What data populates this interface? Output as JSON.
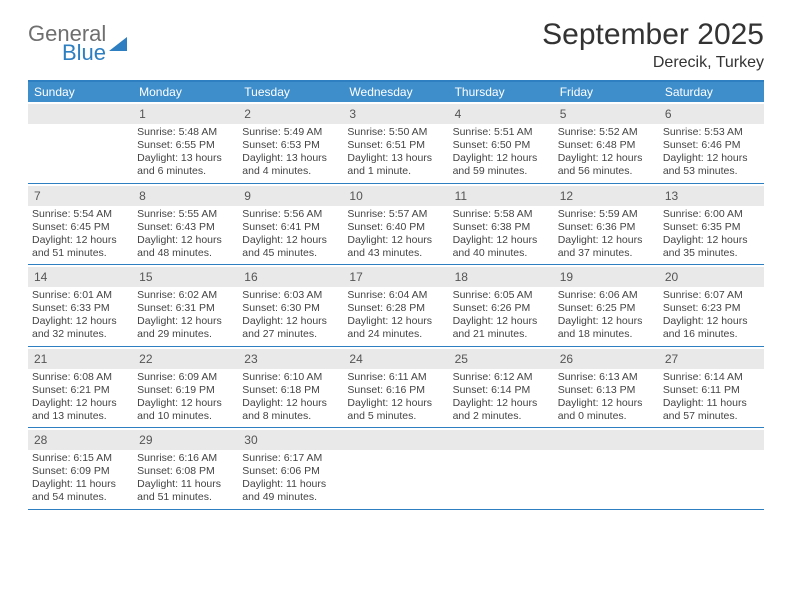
{
  "logo": {
    "line1": "General",
    "line2": "Blue"
  },
  "title": "September 2025",
  "subtitle": "Derecik, Turkey",
  "colors": {
    "header_bar": "#3e8ecc",
    "border": "#2d7fc1",
    "dayband": "#e9e9e9",
    "text": "#333333",
    "bg": "#ffffff"
  },
  "dow": [
    "Sunday",
    "Monday",
    "Tuesday",
    "Wednesday",
    "Thursday",
    "Friday",
    "Saturday"
  ],
  "weeks": [
    [
      {
        "blank": true
      },
      {
        "n": "1",
        "sunrise": "Sunrise: 5:48 AM",
        "sunset": "Sunset: 6:55 PM",
        "d1": "Daylight: 13 hours",
        "d2": "and 6 minutes."
      },
      {
        "n": "2",
        "sunrise": "Sunrise: 5:49 AM",
        "sunset": "Sunset: 6:53 PM",
        "d1": "Daylight: 13 hours",
        "d2": "and 4 minutes."
      },
      {
        "n": "3",
        "sunrise": "Sunrise: 5:50 AM",
        "sunset": "Sunset: 6:51 PM",
        "d1": "Daylight: 13 hours",
        "d2": "and 1 minute."
      },
      {
        "n": "4",
        "sunrise": "Sunrise: 5:51 AM",
        "sunset": "Sunset: 6:50 PM",
        "d1": "Daylight: 12 hours",
        "d2": "and 59 minutes."
      },
      {
        "n": "5",
        "sunrise": "Sunrise: 5:52 AM",
        "sunset": "Sunset: 6:48 PM",
        "d1": "Daylight: 12 hours",
        "d2": "and 56 minutes."
      },
      {
        "n": "6",
        "sunrise": "Sunrise: 5:53 AM",
        "sunset": "Sunset: 6:46 PM",
        "d1": "Daylight: 12 hours",
        "d2": "and 53 minutes."
      }
    ],
    [
      {
        "n": "7",
        "sunrise": "Sunrise: 5:54 AM",
        "sunset": "Sunset: 6:45 PM",
        "d1": "Daylight: 12 hours",
        "d2": "and 51 minutes."
      },
      {
        "n": "8",
        "sunrise": "Sunrise: 5:55 AM",
        "sunset": "Sunset: 6:43 PM",
        "d1": "Daylight: 12 hours",
        "d2": "and 48 minutes."
      },
      {
        "n": "9",
        "sunrise": "Sunrise: 5:56 AM",
        "sunset": "Sunset: 6:41 PM",
        "d1": "Daylight: 12 hours",
        "d2": "and 45 minutes."
      },
      {
        "n": "10",
        "sunrise": "Sunrise: 5:57 AM",
        "sunset": "Sunset: 6:40 PM",
        "d1": "Daylight: 12 hours",
        "d2": "and 43 minutes."
      },
      {
        "n": "11",
        "sunrise": "Sunrise: 5:58 AM",
        "sunset": "Sunset: 6:38 PM",
        "d1": "Daylight: 12 hours",
        "d2": "and 40 minutes."
      },
      {
        "n": "12",
        "sunrise": "Sunrise: 5:59 AM",
        "sunset": "Sunset: 6:36 PM",
        "d1": "Daylight: 12 hours",
        "d2": "and 37 minutes."
      },
      {
        "n": "13",
        "sunrise": "Sunrise: 6:00 AM",
        "sunset": "Sunset: 6:35 PM",
        "d1": "Daylight: 12 hours",
        "d2": "and 35 minutes."
      }
    ],
    [
      {
        "n": "14",
        "sunrise": "Sunrise: 6:01 AM",
        "sunset": "Sunset: 6:33 PM",
        "d1": "Daylight: 12 hours",
        "d2": "and 32 minutes."
      },
      {
        "n": "15",
        "sunrise": "Sunrise: 6:02 AM",
        "sunset": "Sunset: 6:31 PM",
        "d1": "Daylight: 12 hours",
        "d2": "and 29 minutes."
      },
      {
        "n": "16",
        "sunrise": "Sunrise: 6:03 AM",
        "sunset": "Sunset: 6:30 PM",
        "d1": "Daylight: 12 hours",
        "d2": "and 27 minutes."
      },
      {
        "n": "17",
        "sunrise": "Sunrise: 6:04 AM",
        "sunset": "Sunset: 6:28 PM",
        "d1": "Daylight: 12 hours",
        "d2": "and 24 minutes."
      },
      {
        "n": "18",
        "sunrise": "Sunrise: 6:05 AM",
        "sunset": "Sunset: 6:26 PM",
        "d1": "Daylight: 12 hours",
        "d2": "and 21 minutes."
      },
      {
        "n": "19",
        "sunrise": "Sunrise: 6:06 AM",
        "sunset": "Sunset: 6:25 PM",
        "d1": "Daylight: 12 hours",
        "d2": "and 18 minutes."
      },
      {
        "n": "20",
        "sunrise": "Sunrise: 6:07 AM",
        "sunset": "Sunset: 6:23 PM",
        "d1": "Daylight: 12 hours",
        "d2": "and 16 minutes."
      }
    ],
    [
      {
        "n": "21",
        "sunrise": "Sunrise: 6:08 AM",
        "sunset": "Sunset: 6:21 PM",
        "d1": "Daylight: 12 hours",
        "d2": "and 13 minutes."
      },
      {
        "n": "22",
        "sunrise": "Sunrise: 6:09 AM",
        "sunset": "Sunset: 6:19 PM",
        "d1": "Daylight: 12 hours",
        "d2": "and 10 minutes."
      },
      {
        "n": "23",
        "sunrise": "Sunrise: 6:10 AM",
        "sunset": "Sunset: 6:18 PM",
        "d1": "Daylight: 12 hours",
        "d2": "and 8 minutes."
      },
      {
        "n": "24",
        "sunrise": "Sunrise: 6:11 AM",
        "sunset": "Sunset: 6:16 PM",
        "d1": "Daylight: 12 hours",
        "d2": "and 5 minutes."
      },
      {
        "n": "25",
        "sunrise": "Sunrise: 6:12 AM",
        "sunset": "Sunset: 6:14 PM",
        "d1": "Daylight: 12 hours",
        "d2": "and 2 minutes."
      },
      {
        "n": "26",
        "sunrise": "Sunrise: 6:13 AM",
        "sunset": "Sunset: 6:13 PM",
        "d1": "Daylight: 12 hours",
        "d2": "and 0 minutes."
      },
      {
        "n": "27",
        "sunrise": "Sunrise: 6:14 AM",
        "sunset": "Sunset: 6:11 PM",
        "d1": "Daylight: 11 hours",
        "d2": "and 57 minutes."
      }
    ],
    [
      {
        "n": "28",
        "sunrise": "Sunrise: 6:15 AM",
        "sunset": "Sunset: 6:09 PM",
        "d1": "Daylight: 11 hours",
        "d2": "and 54 minutes."
      },
      {
        "n": "29",
        "sunrise": "Sunrise: 6:16 AM",
        "sunset": "Sunset: 6:08 PM",
        "d1": "Daylight: 11 hours",
        "d2": "and 51 minutes."
      },
      {
        "n": "30",
        "sunrise": "Sunrise: 6:17 AM",
        "sunset": "Sunset: 6:06 PM",
        "d1": "Daylight: 11 hours",
        "d2": "and 49 minutes."
      },
      {
        "blank": true
      },
      {
        "blank": true
      },
      {
        "blank": true
      },
      {
        "blank": true
      }
    ]
  ]
}
